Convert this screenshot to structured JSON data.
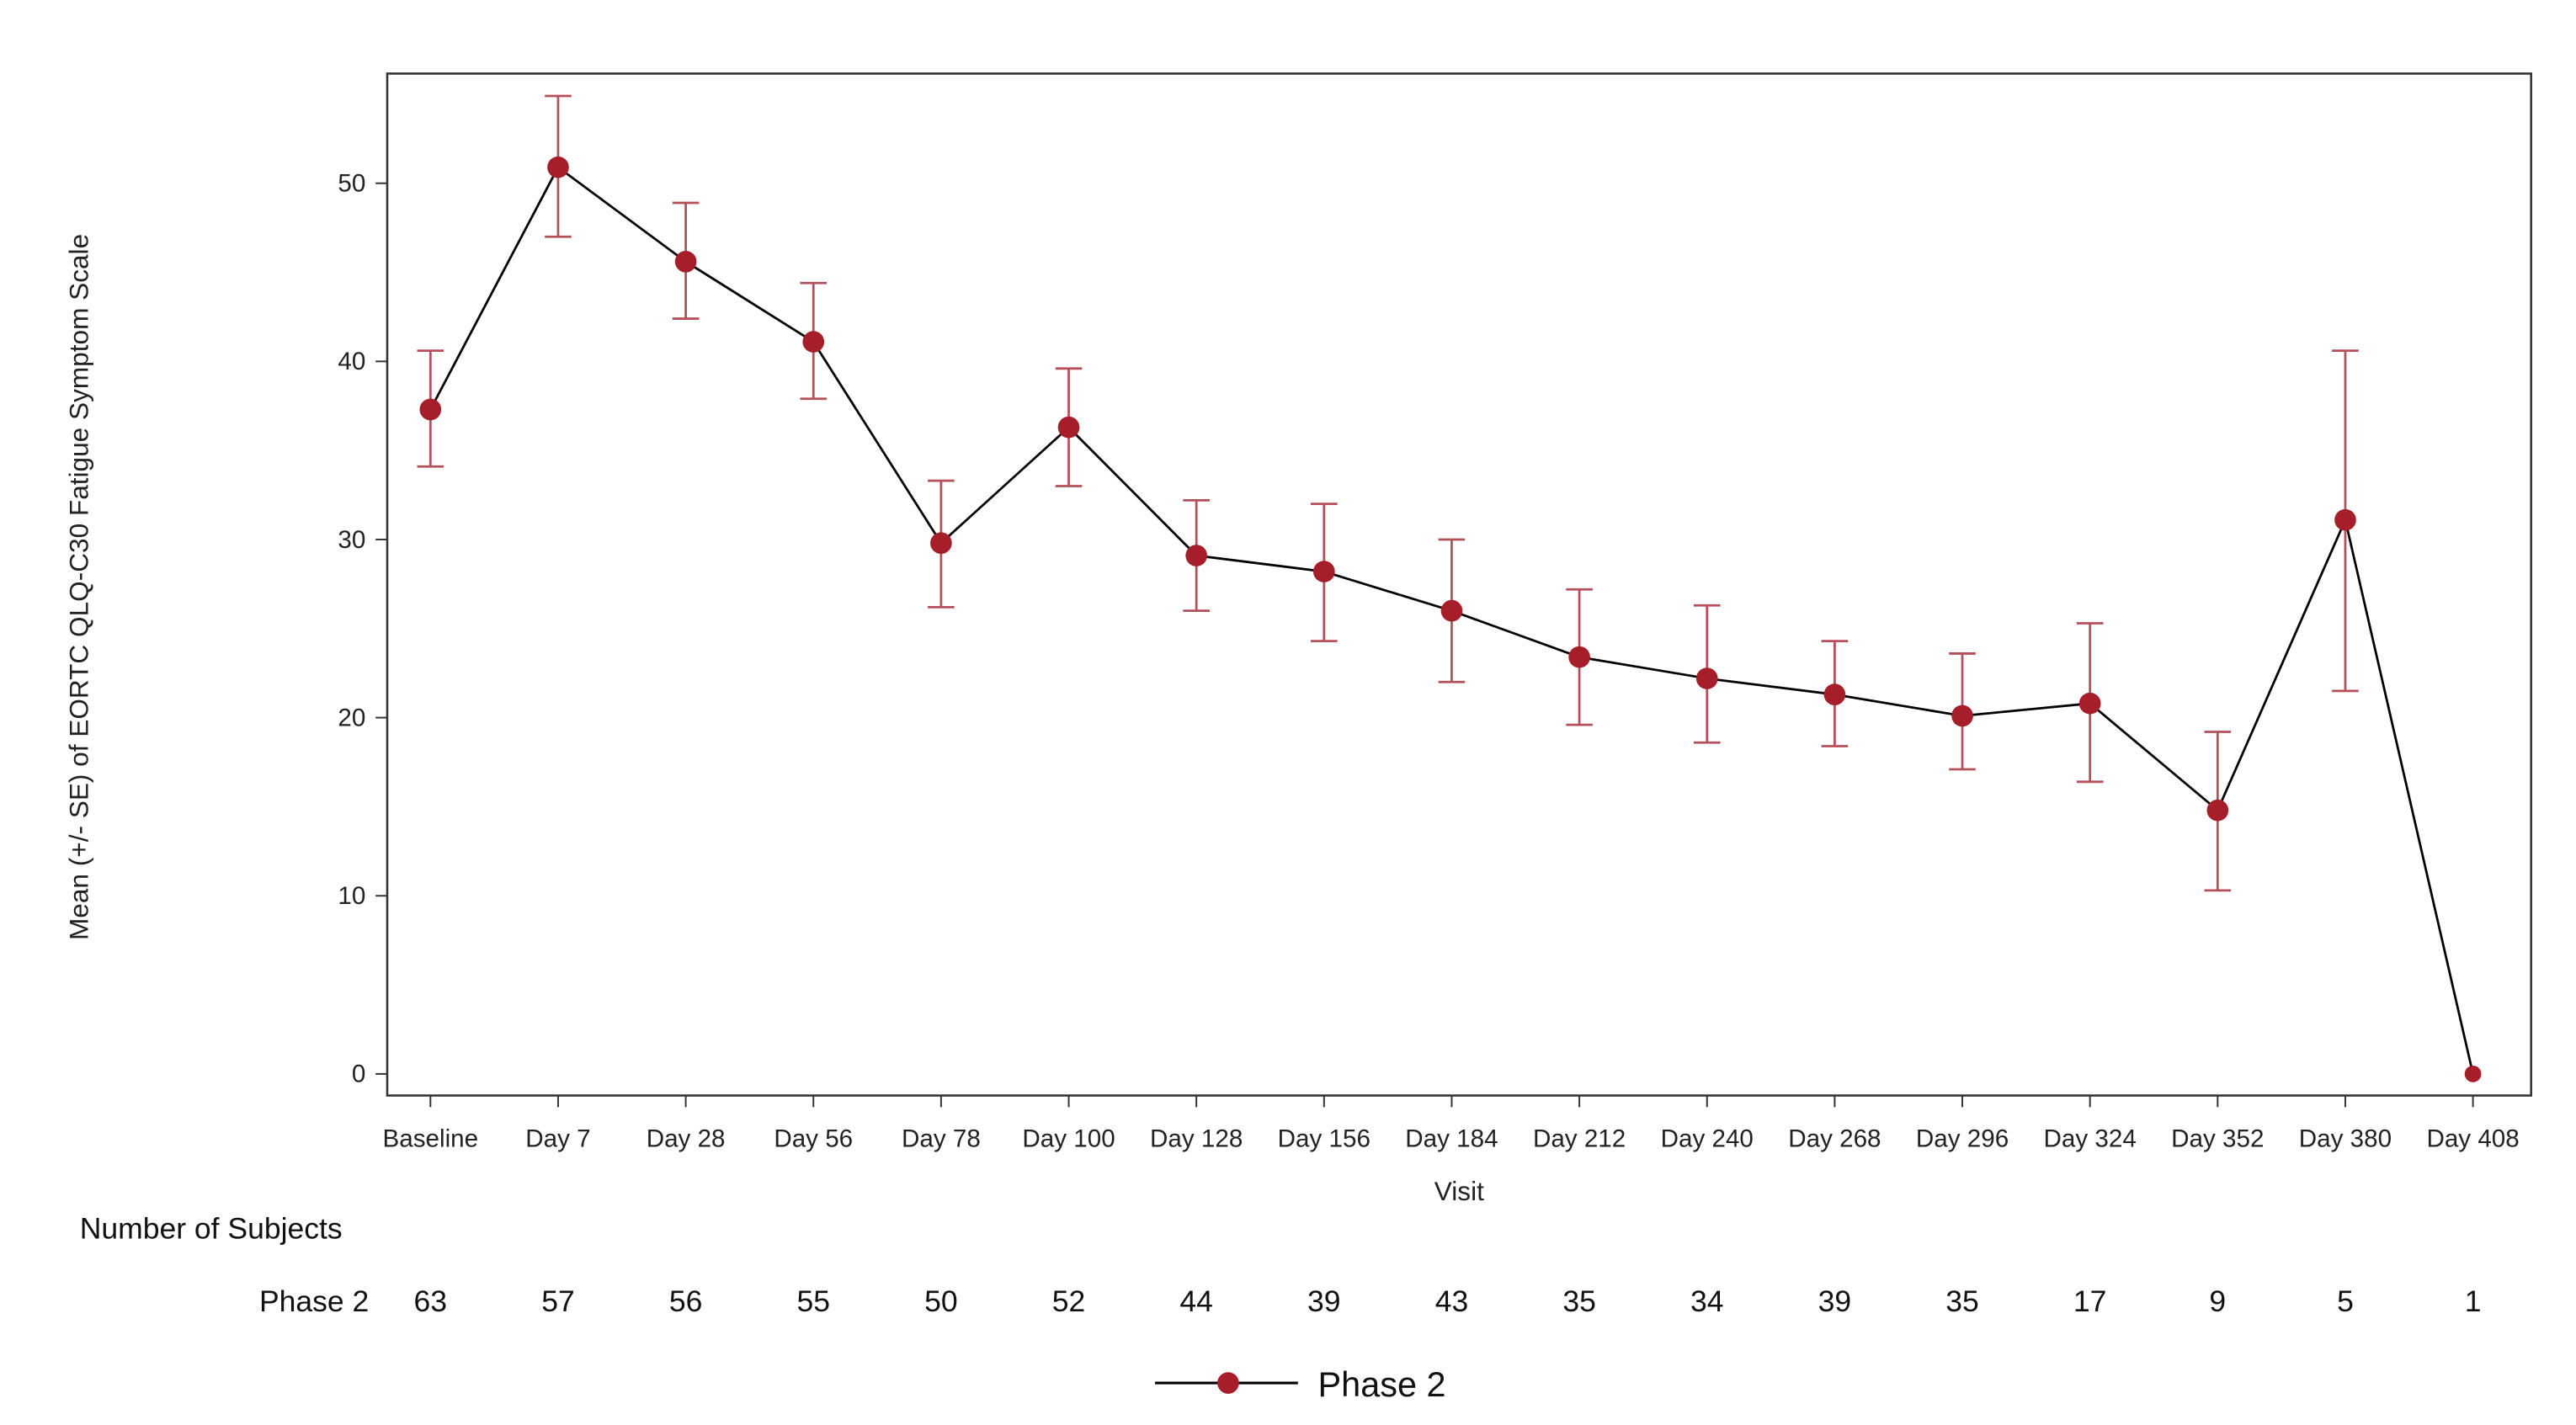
{
  "chart_data": {
    "type": "line",
    "title": "",
    "xlabel": "Visit",
    "ylabel": "Mean (+/- SE) of EORTC QLQ-C30 Fatigue Symptom Scale",
    "ylim": [
      0,
      55
    ],
    "yticks": [
      0,
      10,
      20,
      30,
      40,
      50
    ],
    "grid": false,
    "legend_placement": "bottom-center",
    "categories": [
      "Baseline",
      "Day 7",
      "Day 28",
      "Day 56",
      "Day 78",
      "Day 100",
      "Day 128",
      "Day 156",
      "Day 184",
      "Day 212",
      "Day 240",
      "Day 268",
      "Day 296",
      "Day 324",
      "Day 352",
      "Day 380",
      "Day 408"
    ],
    "series": [
      {
        "name": "Phase 2",
        "color": "#a51e2a",
        "line_color": "#000000",
        "errorbar_color": "#b5505a",
        "values": [
          37.3,
          50.9,
          45.6,
          41.1,
          29.8,
          36.3,
          29.1,
          28.2,
          26.0,
          23.4,
          22.2,
          21.3,
          20.1,
          20.8,
          14.8,
          31.1,
          0.0
        ],
        "lower": [
          34.1,
          47.0,
          42.4,
          37.9,
          26.2,
          33.0,
          26.0,
          24.3,
          22.0,
          19.6,
          18.6,
          18.4,
          17.1,
          16.4,
          10.3,
          21.5,
          null
        ],
        "upper": [
          40.6,
          54.9,
          48.9,
          44.4,
          33.3,
          39.6,
          32.2,
          32.0,
          30.0,
          27.2,
          26.3,
          24.3,
          23.6,
          25.3,
          19.2,
          40.6,
          null
        ]
      }
    ],
    "subjects_table": {
      "title": "Number of Subjects",
      "row_label": "Phase 2",
      "counts": [
        "63",
        "57",
        "56",
        "55",
        "50",
        "52",
        "44",
        "39",
        "43",
        "35",
        "34",
        "39",
        "35",
        "17",
        "9",
        "5",
        "1"
      ]
    }
  }
}
